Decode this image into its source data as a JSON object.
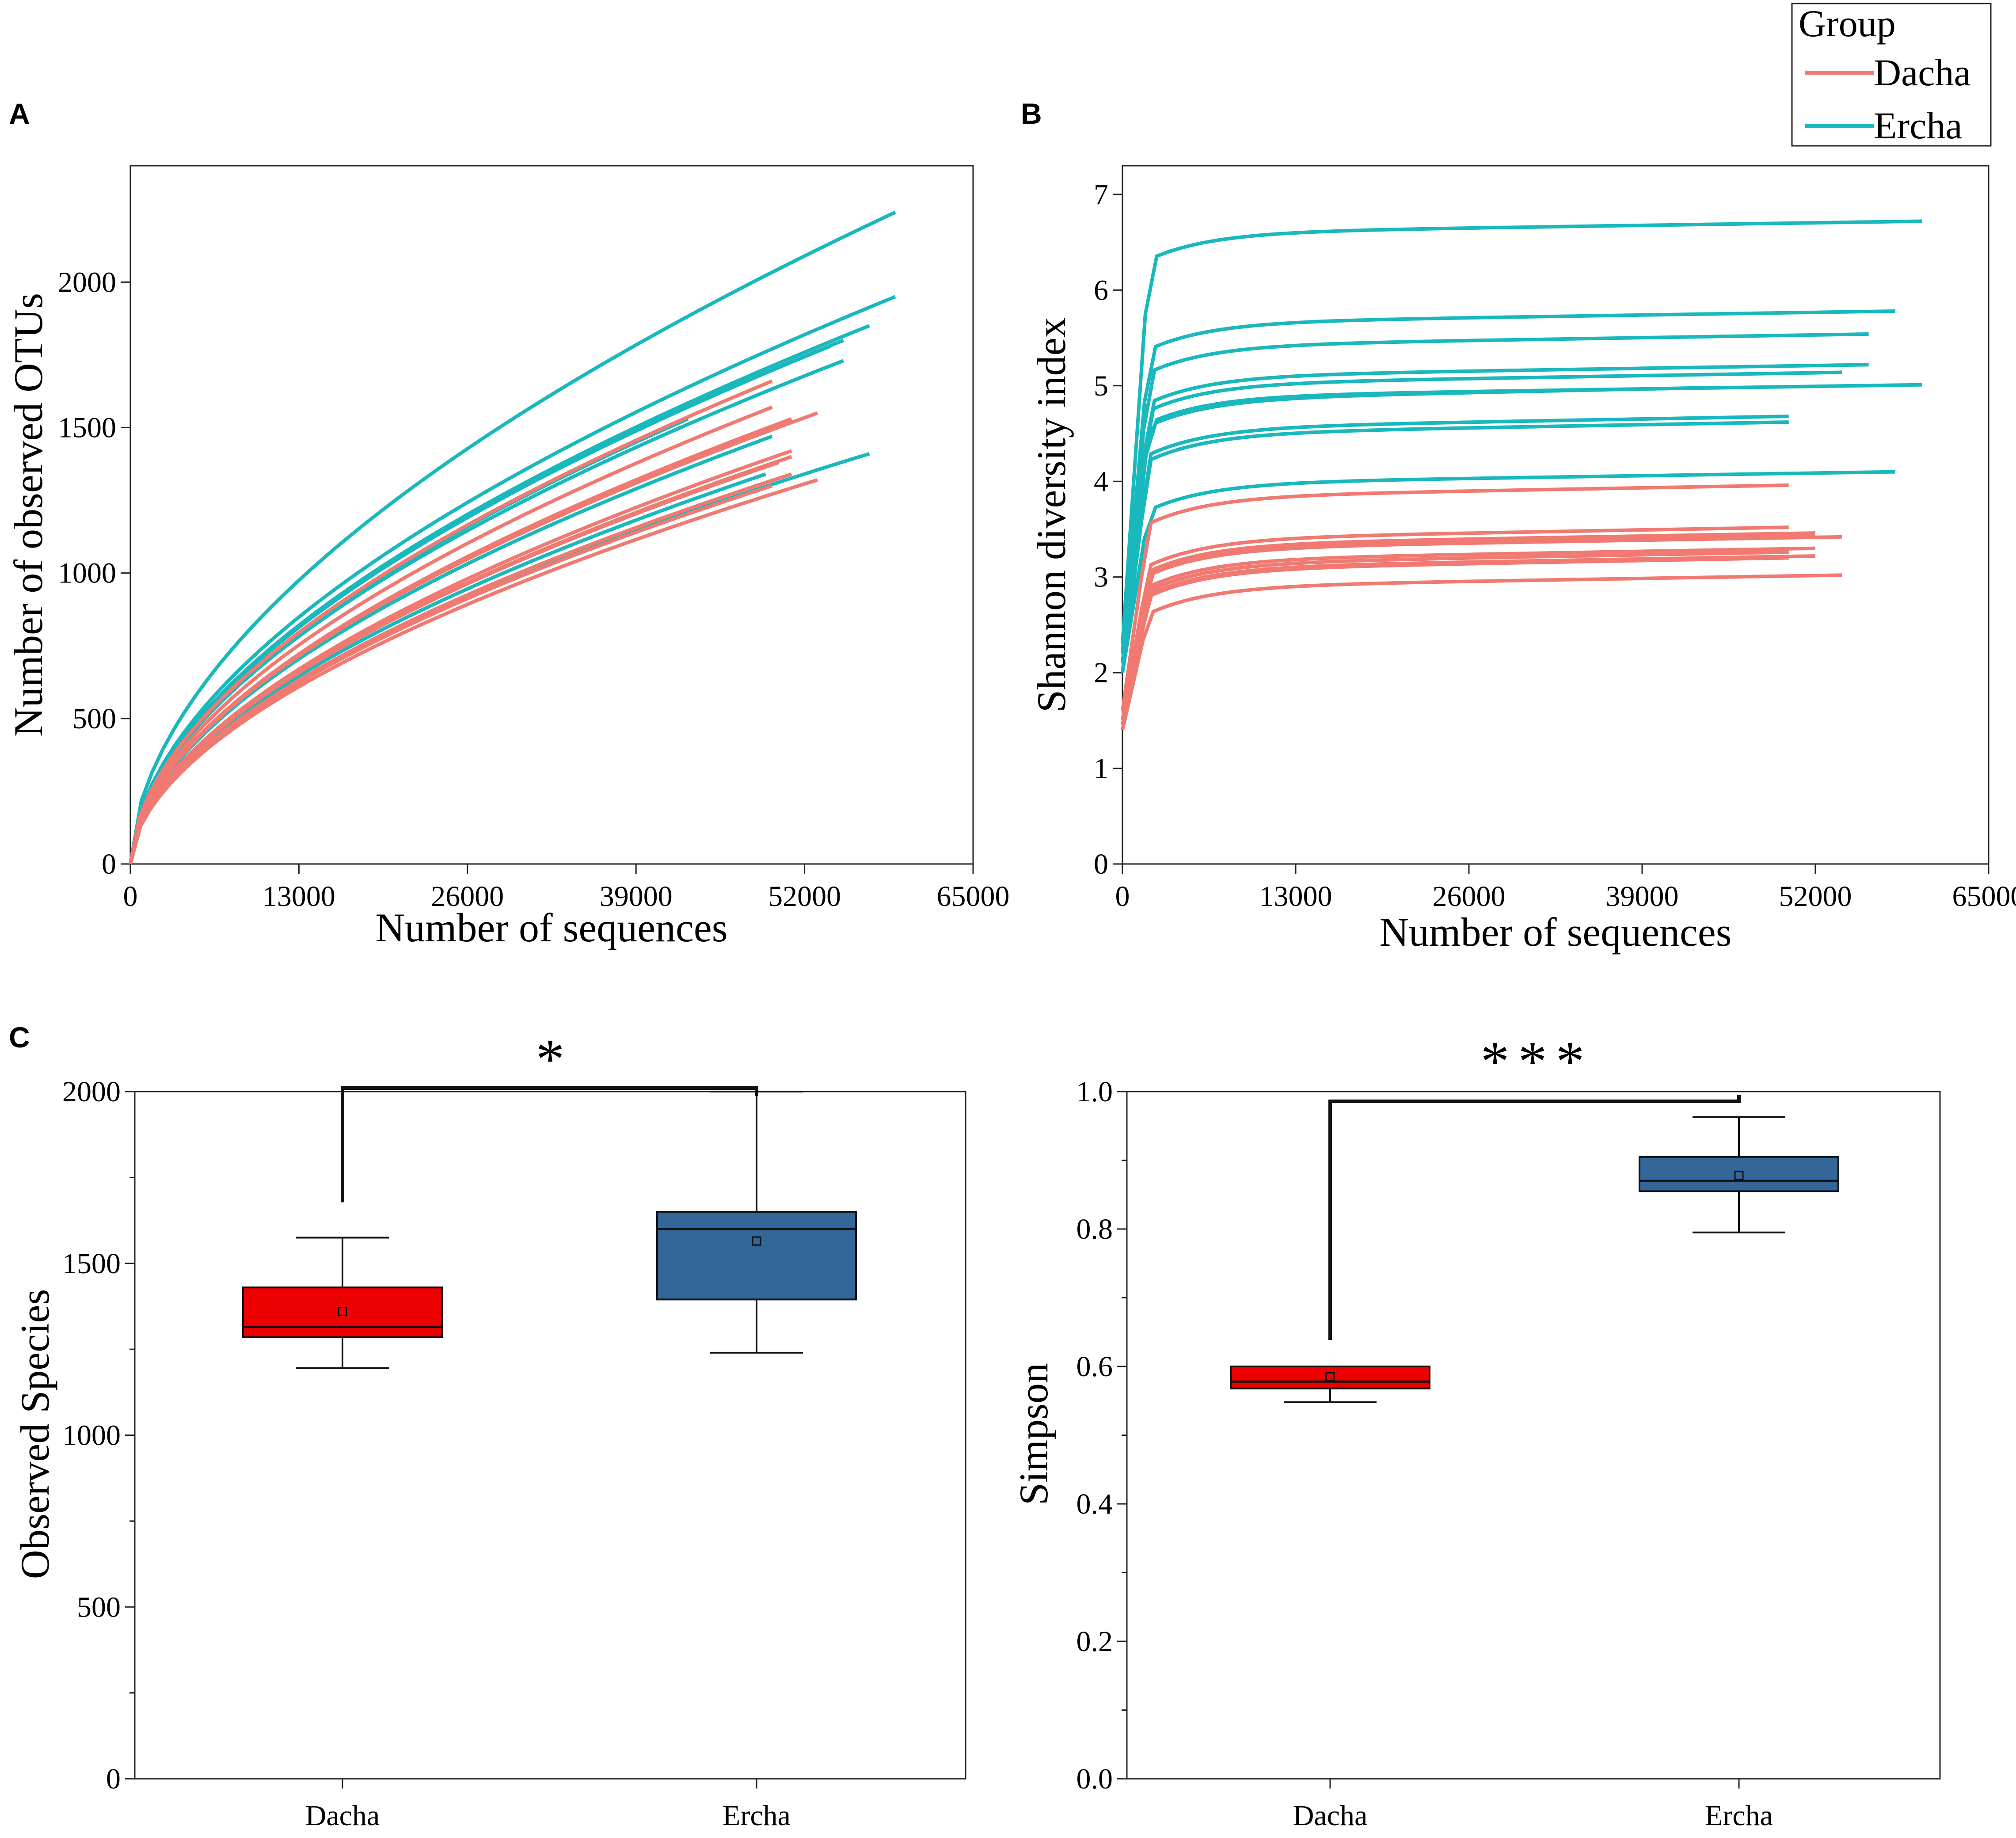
{
  "legend": {
    "title": "Group",
    "entries": [
      {
        "name": "Dacha",
        "color": "#f07a72"
      },
      {
        "name": "Ercha",
        "color": "#19b8bd"
      }
    ]
  },
  "chart_data": [
    {
      "panel": "A",
      "type": "line",
      "xlabel": "Number of sequences",
      "ylabel": "Number of observed OTUs",
      "xlim": [
        0,
        65000
      ],
      "ylim": [
        0,
        2400
      ],
      "xticks": [
        0,
        13000,
        26000,
        39000,
        52000,
        65000
      ],
      "yticks": [
        0,
        500,
        1000,
        1500,
        2000
      ],
      "curve_model": "y = v * (x / xmax)^0.55 (rarefaction curves, endpoints read from figure)",
      "series": [
        {
          "group": "Ercha",
          "xmax": 59000,
          "ymax": 2240
        },
        {
          "group": "Ercha",
          "xmax": 59000,
          "ymax": 1950
        },
        {
          "group": "Ercha",
          "xmax": 57000,
          "ymax": 1850
        },
        {
          "group": "Ercha",
          "xmax": 55000,
          "ymax": 1800
        },
        {
          "group": "Ercha",
          "xmax": 54000,
          "ymax": 1780
        },
        {
          "group": "Ercha",
          "xmax": 55000,
          "ymax": 1730
        },
        {
          "group": "Ercha",
          "xmax": 49500,
          "ymax": 1470
        },
        {
          "group": "Ercha",
          "xmax": 57000,
          "ymax": 1410
        },
        {
          "group": "Ercha",
          "xmax": 49000,
          "ymax": 1340
        },
        {
          "group": "Ercha",
          "xmax": 43000,
          "ymax": 1530
        },
        {
          "group": "Dacha",
          "xmax": 49500,
          "ymax": 1660
        },
        {
          "group": "Dacha",
          "xmax": 49500,
          "ymax": 1570
        },
        {
          "group": "Dacha",
          "xmax": 53000,
          "ymax": 1550
        },
        {
          "group": "Dacha",
          "xmax": 51000,
          "ymax": 1530
        },
        {
          "group": "Dacha",
          "xmax": 51000,
          "ymax": 1420
        },
        {
          "group": "Dacha",
          "xmax": 51000,
          "ymax": 1400
        },
        {
          "group": "Dacha",
          "xmax": 50000,
          "ymax": 1380
        },
        {
          "group": "Dacha",
          "xmax": 51000,
          "ymax": 1340
        },
        {
          "group": "Dacha",
          "xmax": 53000,
          "ymax": 1320
        },
        {
          "group": "Dacha",
          "xmax": 49500,
          "ymax": 1300
        }
      ]
    },
    {
      "panel": "B",
      "type": "line",
      "xlabel": "Number of sequences",
      "ylabel": "Shannon diversity index",
      "xlim": [
        0,
        65000
      ],
      "ylim": [
        0,
        7.3
      ],
      "xticks": [
        0,
        13000,
        26000,
        39000,
        52000,
        65000
      ],
      "yticks": [
        0,
        1,
        2,
        3,
        4,
        5,
        6,
        7
      ],
      "curve_model": "starts at y0 at x=0, rises to plateau near x=2000, then slowly to ymax",
      "series": [
        {
          "group": "Ercha",
          "xmax": 60000,
          "y0": 2.3,
          "ymax": 6.72
        },
        {
          "group": "Ercha",
          "xmax": 58000,
          "y0": 2.2,
          "ymax": 5.78
        },
        {
          "group": "Ercha",
          "xmax": 56000,
          "y0": 2.2,
          "ymax": 5.54
        },
        {
          "group": "Ercha",
          "xmax": 56000,
          "y0": 2.1,
          "ymax": 5.22
        },
        {
          "group": "Ercha",
          "xmax": 54000,
          "y0": 2.1,
          "ymax": 5.14
        },
        {
          "group": "Ercha",
          "xmax": 60000,
          "y0": 2.1,
          "ymax": 5.01
        },
        {
          "group": "Ercha",
          "xmax": 44000,
          "y0": 2.0,
          "ymax": 4.98
        },
        {
          "group": "Ercha",
          "xmax": 50000,
          "y0": 2.0,
          "ymax": 4.68
        },
        {
          "group": "Ercha",
          "xmax": 50000,
          "y0": 2.0,
          "ymax": 4.62
        },
        {
          "group": "Ercha",
          "xmax": 58000,
          "y0": 2.0,
          "ymax": 4.1
        },
        {
          "group": "Dacha",
          "xmax": 50000,
          "y0": 1.6,
          "ymax": 3.96
        },
        {
          "group": "Dacha",
          "xmax": 50000,
          "y0": 1.5,
          "ymax": 3.52
        },
        {
          "group": "Dacha",
          "xmax": 52000,
          "y0": 1.5,
          "ymax": 3.46
        },
        {
          "group": "Dacha",
          "xmax": 52000,
          "y0": 1.5,
          "ymax": 3.43
        },
        {
          "group": "Dacha",
          "xmax": 54000,
          "y0": 1.5,
          "ymax": 3.42
        },
        {
          "group": "Dacha",
          "xmax": 52000,
          "y0": 1.45,
          "ymax": 3.3
        },
        {
          "group": "Dacha",
          "xmax": 50000,
          "y0": 1.45,
          "ymax": 3.26
        },
        {
          "group": "Dacha",
          "xmax": 52000,
          "y0": 1.45,
          "ymax": 3.22
        },
        {
          "group": "Dacha",
          "xmax": 50000,
          "y0": 1.4,
          "ymax": 3.2
        },
        {
          "group": "Dacha",
          "xmax": 54000,
          "y0": 1.4,
          "ymax": 3.02
        }
      ]
    },
    {
      "panel": "C-left",
      "type": "box",
      "ylabel": "Observed Species",
      "categories": [
        "Dacha",
        "Ercha"
      ],
      "ylim": [
        0,
        2000
      ],
      "yticks": [
        0,
        500,
        1000,
        1500,
        2000
      ],
      "boxes": [
        {
          "name": "Dacha",
          "min": 1195,
          "q1": 1285,
          "median": 1315,
          "q3": 1430,
          "max": 1575,
          "mean": 1360,
          "color": "#ee0000"
        },
        {
          "name": "Ercha",
          "min": 1240,
          "q1": 1395,
          "median": 1600,
          "q3": 1650,
          "max": 2000,
          "mean": 1565,
          "color": "#336699"
        }
      ],
      "significance": "*"
    },
    {
      "panel": "C-right",
      "type": "box",
      "ylabel": "Simpson",
      "categories": [
        "Dacha",
        "Ercha"
      ],
      "ylim": [
        0,
        1.0
      ],
      "yticks": [
        0.0,
        0.2,
        0.4,
        0.6,
        0.8,
        1.0
      ],
      "ytick_labels": [
        "0.0",
        "0.2",
        "0.4",
        "0.6",
        "0.8",
        "1.0"
      ],
      "boxes": [
        {
          "name": "Dacha",
          "min": 0.548,
          "q1": 0.568,
          "median": 0.578,
          "q3": 0.6,
          "max": 0.6,
          "mean": 0.585,
          "color": "#ee0000"
        },
        {
          "name": "Ercha",
          "min": 0.795,
          "q1": 0.855,
          "median": 0.87,
          "q3": 0.905,
          "max": 0.963,
          "mean": 0.878,
          "color": "#336699"
        }
      ],
      "significance": "***"
    }
  ]
}
